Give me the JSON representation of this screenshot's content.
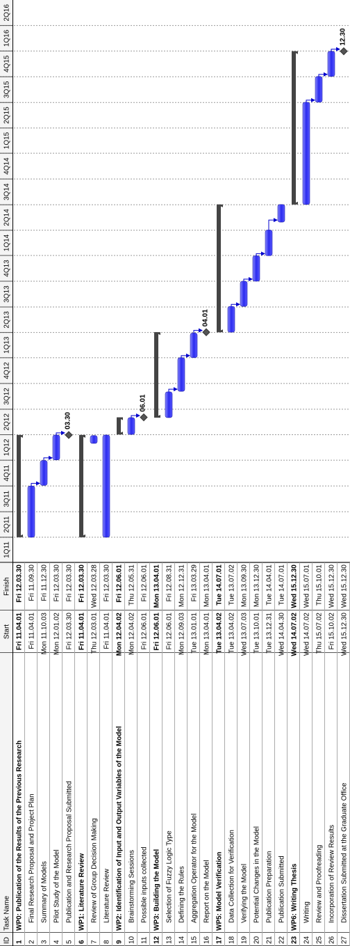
{
  "header": {
    "id": "ID",
    "task_name": "Task Name",
    "start": "Start",
    "finish": "Finish"
  },
  "timeline": {
    "quarters": [
      "1Q11",
      "2Q11",
      "3Q11",
      "4Q11",
      "1Q12",
      "2Q12",
      "3Q12",
      "4Q12",
      "1Q13",
      "2Q13",
      "3Q13",
      "4Q13",
      "1Q14",
      "2Q14",
      "3Q14",
      "4Q14",
      "1Q15",
      "2Q15",
      "3Q15",
      "4Q15",
      "1Q16",
      "2Q16"
    ]
  },
  "tasks": [
    {
      "id": "1",
      "name": "WP0: Publication of the Results of the Previous Research",
      "start": "Fri 11.04.01",
      "finish": "Fri 12.03.30",
      "summary": true
    },
    {
      "id": "2",
      "name": "Final Research Proposal and Project Plan",
      "start": "Fri 11.04.01",
      "finish": "Fri 11.09.30"
    },
    {
      "id": "3",
      "name": "Summary of Models",
      "start": "Mon 11.10.03",
      "finish": "Fri 11.12.30"
    },
    {
      "id": "4",
      "name": "Pilot Study of the Model",
      "start": "Mon 12.01.02",
      "finish": "Fri 12.03.30"
    },
    {
      "id": "5",
      "name": "Publication and Research Proposal Submitted",
      "start": "Fri 12.03.30",
      "finish": "Fri 12.03.30",
      "milestone_label": "03.30"
    },
    {
      "id": "6",
      "name": "WP1: Literature Review",
      "start": "Fri 11.04.01",
      "finish": "Fri 12.03.30",
      "summary": true
    },
    {
      "id": "7",
      "name": "Review of Group Decision Making",
      "start": "Thu 12.03.01",
      "finish": "Wed 12.03.28"
    },
    {
      "id": "8",
      "name": "Literature Review",
      "start": "Fri 11.04.01",
      "finish": "Fri 12.03.30"
    },
    {
      "id": "9",
      "name": "WP2: Identification of Input and Output Variables of the Model",
      "start": "Mon 12.04.02",
      "finish": "Fri 12.06.01",
      "summary": true
    },
    {
      "id": "10",
      "name": "Brainstorming Sessions",
      "start": "Mon 12.04.02",
      "finish": "Thu 12.05.31"
    },
    {
      "id": "11",
      "name": "Possible inputs collected",
      "start": "Fri 12.06.01",
      "finish": "Fri 12.06.01",
      "milestone_label": "06.01"
    },
    {
      "id": "12",
      "name": "WP3: Building the Model",
      "start": "Fri 12.06.01",
      "finish": "Mon 13.04.01",
      "summary": true
    },
    {
      "id": "13",
      "name": "Selection of Fuzzy Logic Type",
      "start": "Fri 12.06.01",
      "finish": "Fri 12.08.31"
    },
    {
      "id": "14",
      "name": "Defining the Rules",
      "start": "Mon 12.09.03",
      "finish": "Mon 12.12.31"
    },
    {
      "id": "15",
      "name": "Aggregation Operator for the Model",
      "start": "Tue 13.01.01",
      "finish": "Fri 13.03.29"
    },
    {
      "id": "16",
      "name": "Report on the Model",
      "start": "Mon 13.04.01",
      "finish": "Mon 13.04.01",
      "milestone_label": "04.01"
    },
    {
      "id": "17",
      "name": "WP5: Model Verification",
      "start": "Tue 13.04.02",
      "finish": "Tue 14.07.01",
      "summary": true
    },
    {
      "id": "18",
      "name": "Data Collection for Verification",
      "start": "Tue 13.04.02",
      "finish": "Tue 13.07.02"
    },
    {
      "id": "19",
      "name": "Verifying the Model",
      "start": "Wed 13.07.03",
      "finish": "Mon 13.09.30"
    },
    {
      "id": "20",
      "name": "Potential Changes in the Model",
      "start": "Tue 13.10.01",
      "finish": "Mon 13.12.30"
    },
    {
      "id": "21",
      "name": "Publication Preparation",
      "start": "Tue 13.12.31",
      "finish": "Tue 14.04.01"
    },
    {
      "id": "22",
      "name": "Publication Submitted",
      "start": "Wed 14.04.30",
      "finish": "Tue 14.07.01"
    },
    {
      "id": "23",
      "name": "WP6: Writing Thesis",
      "start": "Wed 14.07.02",
      "finish": "Wed 15.12.30",
      "summary": true
    },
    {
      "id": "24",
      "name": "Writing",
      "start": "Wed 14.07.02",
      "finish": "Wed 15.07.01"
    },
    {
      "id": "25",
      "name": "Review and Proofreading",
      "start": "Thu 15.07.02",
      "finish": "Thu 15.10.01"
    },
    {
      "id": "26",
      "name": "Incorporation of Review Results",
      "start": "Fri 15.10.02",
      "finish": "Wed 15.12.30"
    },
    {
      "id": "27",
      "name": "Dissertation Submitted at the Graduate Office",
      "start": "Wed 15.12.30",
      "finish": "Wed 15.12.30",
      "milestone_label": "12.30"
    }
  ]
}
